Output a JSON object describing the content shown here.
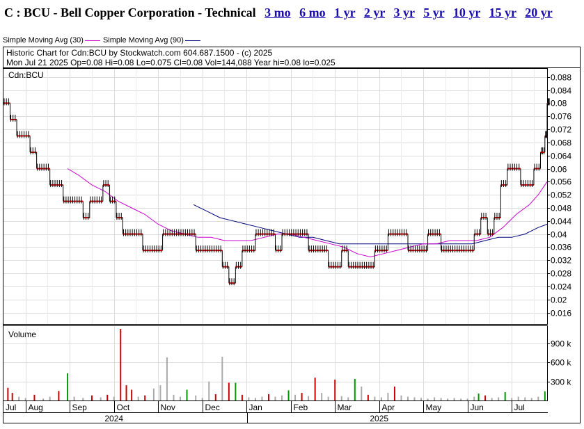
{
  "header": {
    "title": "C : BCU - Bell Copper Corporation - Technical",
    "range_links": [
      "3 mo",
      "6 mo",
      "1 yr",
      "2 yr",
      "3 yr",
      "5 yr",
      "10 yr",
      "15 yr",
      "20 yr"
    ]
  },
  "legend": {
    "sma30_label": "Simple Moving Avg (30)",
    "sma90_label": "Simple Moving Avg (90)"
  },
  "info": {
    "line1": "Historic Chart for Cdn:BCU by Stockwatch.com 604.687.1500 - (c) 2025",
    "line2": "Mon Jul 21 2025   Op=0.08   Hi=0.08   Lo=0.075   Cl=0.08   Vol=144,088   Year hi=0.08   lo=0.025"
  },
  "price_panel_label": "Cdn:BCU",
  "volume_panel_label": "Volume",
  "chart_data": {
    "type": "line",
    "title": "Historic Chart for Cdn:BCU",
    "y_ticks": [
      "0.088",
      "0.084",
      "0.08",
      "0.076",
      "0.072",
      "0.068",
      "0.064",
      "0.06",
      "0.056",
      "0.052",
      "0.048",
      "0.044",
      "0.04",
      "0.036",
      "0.032",
      "0.028",
      "0.024",
      "0.02",
      "0.016"
    ],
    "y_tick_values": [
      0.088,
      0.084,
      0.08,
      0.076,
      0.072,
      0.068,
      0.064,
      0.06,
      0.056,
      0.052,
      0.048,
      0.044,
      0.04,
      0.036,
      0.032,
      0.028,
      0.024,
      0.02,
      0.016
    ],
    "ylim": [
      0.0125,
      0.0905
    ],
    "volume_ticks": [
      "900 k",
      "600 k",
      "300 k"
    ],
    "volume_tick_values": [
      900000,
      600000,
      300000
    ],
    "volume_max": 1130000,
    "months": [
      "Jul",
      "Aug",
      "Sep",
      "Oct",
      "Nov",
      "Dec",
      "Jan",
      "Feb",
      "Mar",
      "Apr",
      "May",
      "Jun",
      "Jul"
    ],
    "month_positions": [
      0,
      0.5,
      1.5,
      2.5,
      3.5,
      4.5,
      5.5,
      6.5,
      7.5,
      8.5,
      9.5,
      10.5,
      11.5
    ],
    "years": [
      "2024",
      "2025"
    ],
    "year_positions": [
      2.5,
      8.5
    ],
    "x_min": 0,
    "x_max": 12.3,
    "price": [
      [
        0.0,
        0.08
      ],
      [
        0.15,
        0.075
      ],
      [
        0.3,
        0.07
      ],
      [
        0.45,
        0.07
      ],
      [
        0.6,
        0.065
      ],
      [
        0.75,
        0.06
      ],
      [
        0.9,
        0.06
      ],
      [
        1.05,
        0.055
      ],
      [
        1.2,
        0.055
      ],
      [
        1.35,
        0.05
      ],
      [
        1.5,
        0.05
      ],
      [
        1.65,
        0.05
      ],
      [
        1.8,
        0.045
      ],
      [
        1.95,
        0.05
      ],
      [
        2.1,
        0.05
      ],
      [
        2.25,
        0.055
      ],
      [
        2.4,
        0.05
      ],
      [
        2.55,
        0.045
      ],
      [
        2.7,
        0.04
      ],
      [
        2.85,
        0.04
      ],
      [
        3.0,
        0.04
      ],
      [
        3.15,
        0.035
      ],
      [
        3.3,
        0.035
      ],
      [
        3.45,
        0.035
      ],
      [
        3.6,
        0.04
      ],
      [
        3.75,
        0.04
      ],
      [
        3.9,
        0.04
      ],
      [
        4.05,
        0.04
      ],
      [
        4.2,
        0.04
      ],
      [
        4.35,
        0.035
      ],
      [
        4.5,
        0.035
      ],
      [
        4.65,
        0.035
      ],
      [
        4.8,
        0.035
      ],
      [
        4.95,
        0.03
      ],
      [
        5.1,
        0.025
      ],
      [
        5.25,
        0.03
      ],
      [
        5.4,
        0.035
      ],
      [
        5.55,
        0.035
      ],
      [
        5.7,
        0.04
      ],
      [
        5.85,
        0.04
      ],
      [
        6.0,
        0.04
      ],
      [
        6.15,
        0.035
      ],
      [
        6.3,
        0.04
      ],
      [
        6.45,
        0.04
      ],
      [
        6.6,
        0.04
      ],
      [
        6.75,
        0.04
      ],
      [
        6.9,
        0.035
      ],
      [
        7.05,
        0.035
      ],
      [
        7.2,
        0.035
      ],
      [
        7.35,
        0.03
      ],
      [
        7.5,
        0.03
      ],
      [
        7.65,
        0.035
      ],
      [
        7.8,
        0.03
      ],
      [
        7.95,
        0.03
      ],
      [
        8.1,
        0.03
      ],
      [
        8.25,
        0.03
      ],
      [
        8.4,
        0.035
      ],
      [
        8.55,
        0.035
      ],
      [
        8.7,
        0.04
      ],
      [
        8.85,
        0.04
      ],
      [
        9.0,
        0.04
      ],
      [
        9.15,
        0.035
      ],
      [
        9.3,
        0.035
      ],
      [
        9.45,
        0.035
      ],
      [
        9.6,
        0.04
      ],
      [
        9.75,
        0.04
      ],
      [
        9.9,
        0.035
      ],
      [
        10.05,
        0.035
      ],
      [
        10.2,
        0.035
      ],
      [
        10.35,
        0.035
      ],
      [
        10.5,
        0.035
      ],
      [
        10.65,
        0.04
      ],
      [
        10.8,
        0.045
      ],
      [
        10.95,
        0.04
      ],
      [
        11.1,
        0.045
      ],
      [
        11.25,
        0.055
      ],
      [
        11.4,
        0.06
      ],
      [
        11.55,
        0.06
      ],
      [
        11.7,
        0.055
      ],
      [
        11.85,
        0.055
      ],
      [
        12.0,
        0.06
      ],
      [
        12.15,
        0.065
      ],
      [
        12.25,
        0.07
      ],
      [
        12.3,
        0.08
      ]
    ],
    "sma30": [
      [
        1.45,
        0.06
      ],
      [
        1.7,
        0.058
      ],
      [
        2.0,
        0.055
      ],
      [
        2.3,
        0.053
      ],
      [
        2.6,
        0.05
      ],
      [
        2.9,
        0.048
      ],
      [
        3.2,
        0.046
      ],
      [
        3.5,
        0.043
      ],
      [
        3.8,
        0.041
      ],
      [
        4.1,
        0.04
      ],
      [
        4.4,
        0.039
      ],
      [
        4.7,
        0.039
      ],
      [
        5.0,
        0.038
      ],
      [
        5.3,
        0.038
      ],
      [
        5.6,
        0.038
      ],
      [
        5.9,
        0.039
      ],
      [
        6.2,
        0.04
      ],
      [
        6.5,
        0.04
      ],
      [
        6.8,
        0.039
      ],
      [
        7.1,
        0.038
      ],
      [
        7.4,
        0.037
      ],
      [
        7.7,
        0.036
      ],
      [
        8.0,
        0.034
      ],
      [
        8.3,
        0.033
      ],
      [
        8.6,
        0.034
      ],
      [
        8.9,
        0.035
      ],
      [
        9.2,
        0.036
      ],
      [
        9.5,
        0.037
      ],
      [
        9.8,
        0.037
      ],
      [
        10.1,
        0.038
      ],
      [
        10.4,
        0.038
      ],
      [
        10.7,
        0.038
      ],
      [
        11.0,
        0.039
      ],
      [
        11.3,
        0.042
      ],
      [
        11.6,
        0.046
      ],
      [
        11.9,
        0.049
      ],
      [
        12.1,
        0.052
      ],
      [
        12.3,
        0.056
      ]
    ],
    "sma90": [
      [
        4.3,
        0.049
      ],
      [
        4.6,
        0.047
      ],
      [
        4.9,
        0.045
      ],
      [
        5.2,
        0.044
      ],
      [
        5.5,
        0.043
      ],
      [
        5.8,
        0.042
      ],
      [
        6.1,
        0.041
      ],
      [
        6.4,
        0.04
      ],
      [
        6.7,
        0.039
      ],
      [
        7.0,
        0.039
      ],
      [
        7.3,
        0.038
      ],
      [
        7.6,
        0.037
      ],
      [
        7.9,
        0.037
      ],
      [
        8.2,
        0.037
      ],
      [
        8.5,
        0.037
      ],
      [
        8.8,
        0.037
      ],
      [
        9.1,
        0.037
      ],
      [
        9.4,
        0.037
      ],
      [
        9.7,
        0.037
      ],
      [
        10.0,
        0.037
      ],
      [
        10.3,
        0.037
      ],
      [
        10.6,
        0.037
      ],
      [
        10.9,
        0.038
      ],
      [
        11.2,
        0.039
      ],
      [
        11.5,
        0.039
      ],
      [
        11.8,
        0.04
      ],
      [
        12.1,
        0.042
      ],
      [
        12.3,
        0.043
      ]
    ],
    "volume": [
      [
        0.1,
        200000,
        "red"
      ],
      [
        0.2,
        120000,
        "red"
      ],
      [
        0.35,
        60000,
        "gray"
      ],
      [
        0.5,
        40000,
        "gray"
      ],
      [
        0.7,
        90000,
        "red"
      ],
      [
        0.9,
        30000,
        "gray"
      ],
      [
        1.05,
        60000,
        "gray"
      ],
      [
        1.25,
        150000,
        "red"
      ],
      [
        1.45,
        430000,
        "green"
      ],
      [
        1.6,
        60000,
        "gray"
      ],
      [
        1.8,
        40000,
        "gray"
      ],
      [
        2.0,
        80000,
        "red"
      ],
      [
        2.2,
        50000,
        "gray"
      ],
      [
        2.35,
        90000,
        "red"
      ],
      [
        2.5,
        60000,
        "gray"
      ],
      [
        2.65,
        1130000,
        "red"
      ],
      [
        2.78,
        240000,
        "red"
      ],
      [
        2.9,
        170000,
        "red"
      ],
      [
        3.05,
        60000,
        "gray"
      ],
      [
        3.2,
        80000,
        "red"
      ],
      [
        3.4,
        190000,
        "gray"
      ],
      [
        3.55,
        240000,
        "gray"
      ],
      [
        3.7,
        680000,
        "gray"
      ],
      [
        3.85,
        90000,
        "gray"
      ],
      [
        4.0,
        60000,
        "gray"
      ],
      [
        4.15,
        170000,
        "green"
      ],
      [
        4.35,
        80000,
        "gray"
      ],
      [
        4.5,
        40000,
        "gray"
      ],
      [
        4.65,
        300000,
        "gray"
      ],
      [
        4.8,
        100000,
        "red"
      ],
      [
        4.95,
        690000,
        "gray"
      ],
      [
        5.1,
        280000,
        "red"
      ],
      [
        5.25,
        280000,
        "green"
      ],
      [
        5.4,
        90000,
        "red"
      ],
      [
        5.55,
        50000,
        "gray"
      ],
      [
        5.7,
        40000,
        "gray"
      ],
      [
        5.85,
        60000,
        "gray"
      ],
      [
        6.0,
        100000,
        "red"
      ],
      [
        6.15,
        60000,
        "gray"
      ],
      [
        6.3,
        80000,
        "gray"
      ],
      [
        6.45,
        160000,
        "green"
      ],
      [
        6.6,
        90000,
        "gray"
      ],
      [
        6.75,
        120000,
        "red"
      ],
      [
        6.9,
        70000,
        "gray"
      ],
      [
        7.05,
        360000,
        "red"
      ],
      [
        7.2,
        120000,
        "gray"
      ],
      [
        7.35,
        60000,
        "gray"
      ],
      [
        7.5,
        330000,
        "red"
      ],
      [
        7.65,
        70000,
        "gray"
      ],
      [
        7.8,
        50000,
        "gray"
      ],
      [
        7.95,
        340000,
        "green"
      ],
      [
        8.1,
        220000,
        "gray"
      ],
      [
        8.25,
        90000,
        "red"
      ],
      [
        8.4,
        60000,
        "gray"
      ],
      [
        8.55,
        50000,
        "gray"
      ],
      [
        8.7,
        120000,
        "gray"
      ],
      [
        8.85,
        220000,
        "red"
      ],
      [
        9.0,
        80000,
        "gray"
      ],
      [
        9.15,
        60000,
        "gray"
      ],
      [
        9.3,
        50000,
        "gray"
      ],
      [
        9.45,
        40000,
        "gray"
      ],
      [
        9.6,
        30000,
        "gray"
      ],
      [
        9.75,
        50000,
        "gray"
      ],
      [
        9.9,
        40000,
        "gray"
      ],
      [
        10.05,
        30000,
        "gray"
      ],
      [
        10.2,
        40000,
        "gray"
      ],
      [
        10.35,
        30000,
        "gray"
      ],
      [
        10.5,
        30000,
        "gray"
      ],
      [
        10.65,
        60000,
        "gray"
      ],
      [
        10.75,
        110000,
        "green"
      ],
      [
        10.9,
        80000,
        "red"
      ],
      [
        11.05,
        40000,
        "gray"
      ],
      [
        11.2,
        50000,
        "gray"
      ],
      [
        11.35,
        130000,
        "green"
      ],
      [
        11.5,
        40000,
        "gray"
      ],
      [
        11.65,
        60000,
        "gray"
      ],
      [
        11.8,
        50000,
        "gray"
      ],
      [
        11.95,
        40000,
        "gray"
      ],
      [
        12.1,
        60000,
        "gray"
      ],
      [
        12.25,
        144088,
        "green"
      ]
    ]
  }
}
